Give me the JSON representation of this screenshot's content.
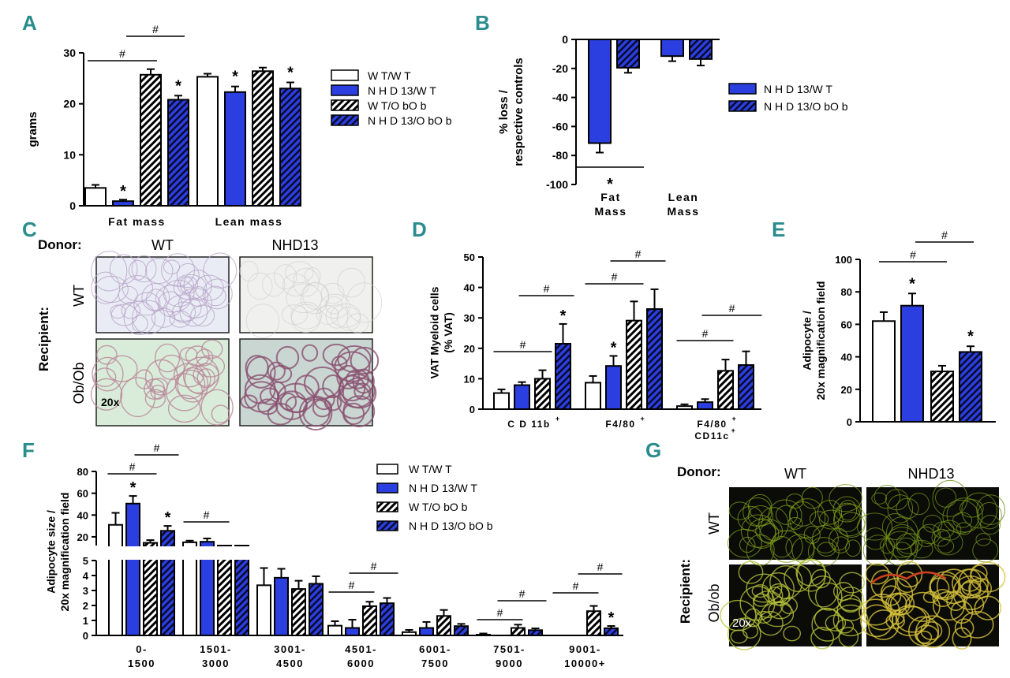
{
  "colors": {
    "wt_wt": "#ffffff",
    "nhd13_wt": "#2b3fe0",
    "stroke": "#000000",
    "panel_letter": "#2a8c8c",
    "he_normal": "#e9ecf4",
    "he_obob": "#d9ecd9",
    "fluor_bg": "#0b0b08"
  },
  "panels": {
    "A": "A",
    "B": "B",
    "C": "C",
    "D": "D",
    "E": "E",
    "F": "F",
    "G": "G"
  },
  "legend": {
    "wt_wt": "W T/W T",
    "nhd13_wt": "N H D 13/W T",
    "wt_obob": "W T/O bO b",
    "nhd13_obob": "N H D 13/O bO b"
  },
  "legend_b": {
    "nhd13_wt": "N H D 13/W T",
    "nhd13_obob": "N H D 13/O bO b"
  },
  "panel_c": {
    "donor": "Donor:",
    "recipient": "Recipient:",
    "col_wt": "WT",
    "col_nhd13": "NHD13",
    "row_wt": "WT",
    "row_obob": "Ob/Ob",
    "magnification": "20x"
  },
  "panel_g": {
    "donor": "Donor:",
    "recipient": "Recipient:",
    "col_wt": "WT",
    "col_nhd13": "NHD13",
    "row_wt": "WT",
    "row_obob": "Ob/ob",
    "magnification": "20x"
  },
  "chart_data": [
    {
      "panel": "A",
      "type": "bar",
      "ylabel": "grams",
      "ylim": [
        0,
        30
      ],
      "yticks": [
        0,
        10,
        20,
        30
      ],
      "categories": [
        "Fat mass",
        "Lean mass"
      ],
      "series": [
        {
          "name": "W T/W T",
          "values": [
            3.5,
            25.3
          ],
          "errors": [
            0.6,
            0.6
          ]
        },
        {
          "name": "N H D 13/W T",
          "values": [
            0.9,
            22.3
          ],
          "errors": [
            0.3,
            1.1
          ]
        },
        {
          "name": "W T/O bO b",
          "values": [
            25.7,
            26.4
          ],
          "errors": [
            1.1,
            0.7
          ]
        },
        {
          "name": "N H D 13/O bO b",
          "values": [
            20.8,
            23.0
          ],
          "errors": [
            0.8,
            1.2
          ]
        }
      ],
      "asterisk": [
        "*",
        "*",
        "*",
        "*"
      ],
      "hash": [
        "#",
        "#"
      ]
    },
    {
      "panel": "B",
      "type": "bar",
      "ylabel": "% loss /\nrespective controls",
      "ylim": [
        -100,
        0
      ],
      "yticks": [
        0,
        -20,
        -40,
        -60,
        -80,
        -100
      ],
      "categories": [
        "Fat\nMass",
        "Lean\nMass"
      ],
      "series": [
        {
          "name": "N H D 13/W T",
          "values": [
            -71.5,
            -11.5
          ],
          "errors": [
            6.5,
            3.5
          ]
        },
        {
          "name": "N H D 13/O bO b",
          "values": [
            -19.5,
            -13.5
          ],
          "errors": [
            3.5,
            4.5
          ]
        }
      ],
      "asterisk": [
        "*"
      ]
    },
    {
      "panel": "D",
      "type": "bar",
      "ylabel": "VAT Myeloid cells\n(% VAT)",
      "ylim": [
        0,
        50
      ],
      "yticks": [
        0,
        10,
        20,
        30,
        40,
        50
      ],
      "categories": [
        "C D 11b",
        "F4/80",
        "F4/80\nCD11c"
      ],
      "category_superscripts": [
        "+",
        "+",
        "+ / +"
      ],
      "series": [
        {
          "values": [
            5.3,
            8.7,
            1.0
          ],
          "errors": [
            1.2,
            2.2,
            0.6
          ]
        },
        {
          "values": [
            7.9,
            14.2,
            2.3
          ],
          "errors": [
            1.0,
            3.3,
            1.0
          ]
        },
        {
          "values": [
            10.0,
            29.1,
            12.6
          ],
          "errors": [
            2.8,
            6.3,
            3.7
          ]
        },
        {
          "values": [
            21.5,
            32.9,
            14.5
          ],
          "errors": [
            6.5,
            6.5,
            4.5
          ]
        }
      ],
      "asterisk": [
        "*",
        "*"
      ],
      "hash": [
        "#",
        "#",
        "#",
        "#",
        "#",
        "#"
      ]
    },
    {
      "panel": "E",
      "type": "bar",
      "ylabel": "Adipocyte /\n20x magnification field",
      "ylim": [
        0,
        100
      ],
      "yticks": [
        0,
        20,
        40,
        60,
        80,
        100
      ],
      "series": [
        {
          "values": [
            62
          ]
        },
        {
          "values": [
            71.5
          ]
        },
        {
          "values": [
            31
          ]
        },
        {
          "values": [
            43
          ]
        }
      ],
      "errors": [
        5.5,
        7.5,
        3.5,
        3.5
      ],
      "asterisk": [
        "*",
        "*"
      ],
      "hash": [
        "#",
        "#"
      ]
    },
    {
      "panel": "F",
      "type": "bar",
      "ylabel": "Adipocyte size /\n20x magnification field",
      "upper_yticks": [
        20,
        40,
        60,
        80
      ],
      "lower_yticks": [
        0,
        1,
        2,
        3,
        4,
        5
      ],
      "ylim_lower": [
        0,
        5
      ],
      "ylim_upper": [
        12,
        80
      ],
      "categories": [
        "0-\n1500",
        "1501-\n3000",
        "3001-\n4500",
        "4501-\n6000",
        "6001-\n7500",
        "7501-\n9000",
        "9001-\n10000+"
      ],
      "series": [
        {
          "name": "W T/W T",
          "values": [
            31,
            15,
            3.35,
            0.65,
            0.22,
            0.05,
            0
          ],
          "errors": [
            11,
            1.5,
            1.15,
            0.3,
            0.15,
            0.08,
            0
          ]
        },
        {
          "name": "N H D 13/W T",
          "values": [
            50.5,
            15.5,
            3.85,
            0.5,
            0.5,
            0,
            0
          ],
          "errors": [
            7,
            3,
            0.6,
            0.55,
            0.4,
            0,
            0
          ]
        },
        {
          "name": "W T/O bO b",
          "values": [
            14.5,
            10,
            3.1,
            1.95,
            1.3,
            0.5,
            1.62
          ],
          "errors": [
            2.5,
            1,
            0.55,
            0.3,
            0.4,
            0.22,
            0.35
          ]
        },
        {
          "name": "N H D 13/O bO b",
          "values": [
            25.5,
            10.5,
            3.45,
            2.15,
            0.62,
            0.35,
            0.48
          ],
          "errors": [
            4.5,
            1.5,
            0.5,
            0.35,
            0.15,
            0.12,
            0.15
          ]
        }
      ],
      "asterisk": [
        "*",
        "*",
        "*"
      ],
      "hash": [
        "#",
        "#",
        "#",
        "#",
        "#",
        "#",
        "#",
        "#"
      ]
    }
  ]
}
